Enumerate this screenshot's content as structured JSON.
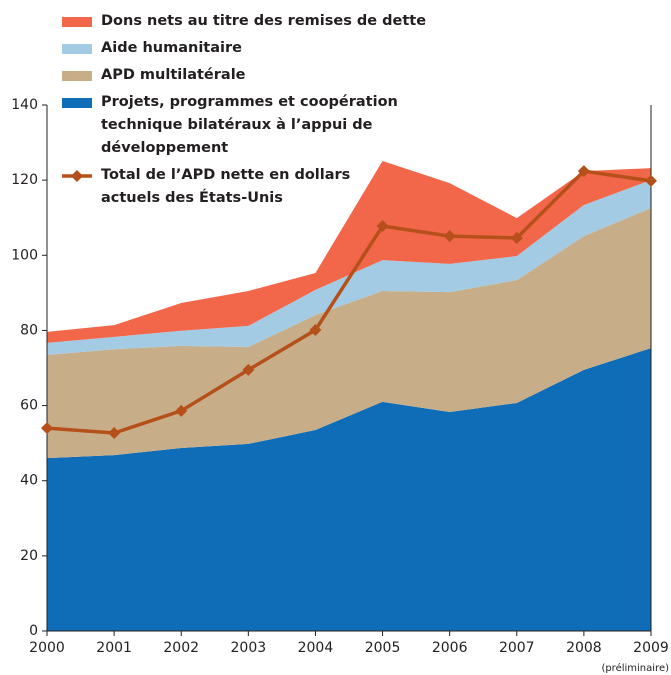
{
  "chart_data": {
    "type": "stacked-area-line",
    "categories": [
      "2000",
      "2001",
      "2002",
      "2003",
      "2004",
      "2005",
      "2006",
      "2007",
      "2008",
      "2009"
    ],
    "annotation": "(préliminaire)",
    "series": [
      {
        "name": "Dons nets au titre des remises de dette",
        "color": "#f26649",
        "values": [
          2.9,
          3.1,
          7.4,
          9.3,
          4.5,
          26.4,
          21.5,
          10.1,
          9.0,
          3.2
        ]
      },
      {
        "name": "Aide humanitaire",
        "color": "#a3cbe3",
        "values": [
          3.2,
          3.3,
          4.0,
          5.6,
          6.7,
          8.2,
          7.5,
          6.4,
          8.3,
          7.4
        ]
      },
      {
        "name": "APD multilatérale",
        "color": "#c8ae88",
        "values": [
          27.5,
          28.2,
          27.2,
          25.8,
          30.6,
          29.5,
          31.9,
          32.7,
          35.6,
          37.3
        ]
      },
      {
        "name": "Projets, programmes et coopération technique bilatéraux à l’appui de développement",
        "color": "#0f6cb6",
        "values": [
          46.0,
          46.8,
          48.7,
          49.8,
          53.5,
          61.0,
          58.3,
          60.7,
          69.5,
          75.3
        ]
      },
      {
        "name": "Total de l’APD nette en dollars actuels des États-Unis",
        "color": "#b5501a",
        "type": "line",
        "values": [
          54.0,
          52.7,
          58.6,
          69.5,
          80.1,
          107.8,
          105.1,
          104.6,
          122.4,
          119.8
        ]
      }
    ],
    "ylim": [
      0,
      140
    ],
    "yticks": [
      0,
      20,
      40,
      60,
      80,
      100,
      120,
      140
    ]
  }
}
